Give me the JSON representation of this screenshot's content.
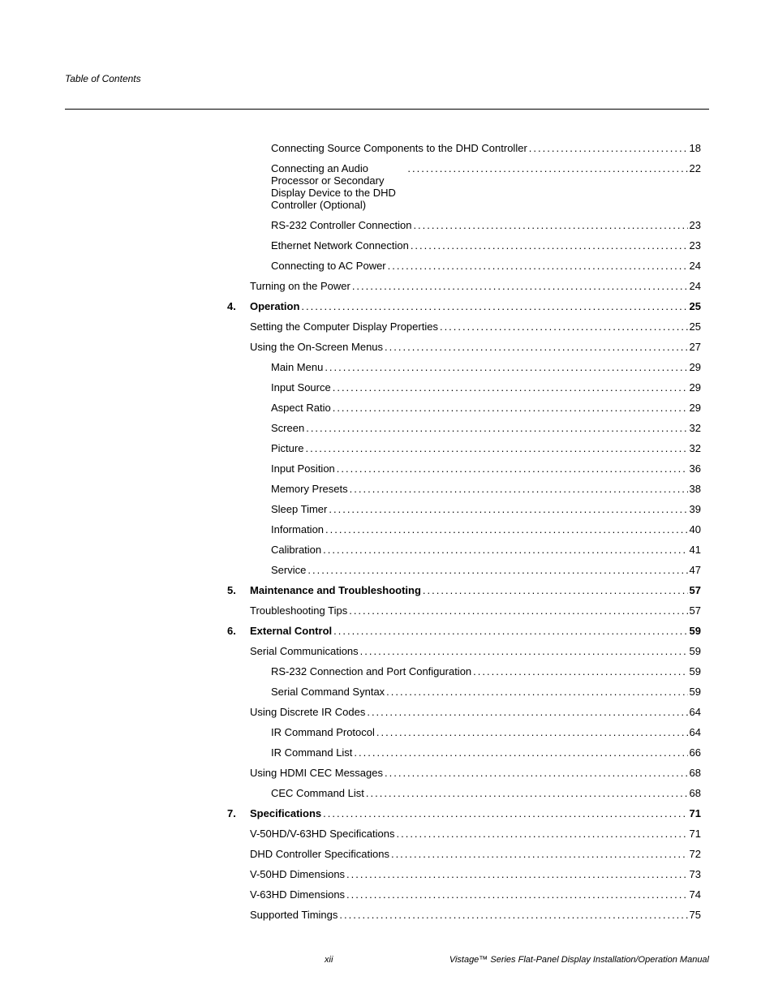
{
  "running_head": "Table of Contents",
  "footer": {
    "page": "xii",
    "manual": "Vistage™ Series Flat-Panel Display Installation/Operation Manual"
  },
  "entries": [
    {
      "num": "",
      "indent": 2,
      "bold": false,
      "label": "Connecting Source Components to the DHD Controller",
      "page": "18"
    },
    {
      "num": "",
      "indent": 2,
      "bold": false,
      "label": "Connecting an Audio Processor or Secondary Display Device to the DHD Controller (Optional)",
      "page": "22",
      "multiline": true
    },
    {
      "num": "",
      "indent": 2,
      "bold": false,
      "label": "RS-232 Controller Connection",
      "page": "23"
    },
    {
      "num": "",
      "indent": 2,
      "bold": false,
      "label": "Ethernet Network Connection",
      "page": "23"
    },
    {
      "num": "",
      "indent": 2,
      "bold": false,
      "label": "Connecting to AC Power",
      "page": "24"
    },
    {
      "num": "",
      "indent": 1,
      "bold": false,
      "label": "Turning on the Power",
      "page": "24"
    },
    {
      "num": "4.",
      "indent": 0,
      "bold": true,
      "label": "Operation",
      "page": "25"
    },
    {
      "num": "",
      "indent": 1,
      "bold": false,
      "label": "Setting the Computer Display Properties",
      "page": "25"
    },
    {
      "num": "",
      "indent": 1,
      "bold": false,
      "label": "Using the On-Screen Menus",
      "page": "27"
    },
    {
      "num": "",
      "indent": 2,
      "bold": false,
      "label": "Main Menu",
      "page": "29"
    },
    {
      "num": "",
      "indent": 2,
      "bold": false,
      "label": "Input Source",
      "page": "29"
    },
    {
      "num": "",
      "indent": 2,
      "bold": false,
      "label": "Aspect Ratio",
      "page": "29"
    },
    {
      "num": "",
      "indent": 2,
      "bold": false,
      "label": "Screen",
      "page": "32"
    },
    {
      "num": "",
      "indent": 2,
      "bold": false,
      "label": "Picture",
      "page": "32"
    },
    {
      "num": "",
      "indent": 2,
      "bold": false,
      "label": "Input Position",
      "page": "36"
    },
    {
      "num": "",
      "indent": 2,
      "bold": false,
      "label": "Memory Presets",
      "page": "38"
    },
    {
      "num": "",
      "indent": 2,
      "bold": false,
      "label": "Sleep Timer",
      "page": "39"
    },
    {
      "num": "",
      "indent": 2,
      "bold": false,
      "label": "Information",
      "page": "40"
    },
    {
      "num": "",
      "indent": 2,
      "bold": false,
      "label": "Calibration",
      "page": "41"
    },
    {
      "num": "",
      "indent": 2,
      "bold": false,
      "label": "Service",
      "page": "47"
    },
    {
      "num": "5.",
      "indent": 0,
      "bold": true,
      "label": "Maintenance and Troubleshooting",
      "page": "57"
    },
    {
      "num": "",
      "indent": 1,
      "bold": false,
      "label": "Troubleshooting Tips",
      "page": "57"
    },
    {
      "num": "6.",
      "indent": 0,
      "bold": true,
      "label": "External Control",
      "page": "59"
    },
    {
      "num": "",
      "indent": 1,
      "bold": false,
      "label": "Serial Communications",
      "page": "59"
    },
    {
      "num": "",
      "indent": 2,
      "bold": false,
      "label": "RS-232 Connection and Port Configuration",
      "page": "59"
    },
    {
      "num": "",
      "indent": 2,
      "bold": false,
      "label": "Serial Command Syntax",
      "page": "59"
    },
    {
      "num": "",
      "indent": 1,
      "bold": false,
      "label": "Using Discrete IR Codes",
      "page": "64"
    },
    {
      "num": "",
      "indent": 2,
      "bold": false,
      "label": "IR Command Protocol",
      "page": "64"
    },
    {
      "num": "",
      "indent": 2,
      "bold": false,
      "label": "IR Command List",
      "page": "66"
    },
    {
      "num": "",
      "indent": 1,
      "bold": false,
      "label": "Using HDMI CEC Messages",
      "page": "68"
    },
    {
      "num": "",
      "indent": 2,
      "bold": false,
      "label": "CEC Command List",
      "page": "68"
    },
    {
      "num": "7.",
      "indent": 0,
      "bold": true,
      "label": "Specifications",
      "page": "71"
    },
    {
      "num": "",
      "indent": 1,
      "bold": false,
      "label": "V-50HD/V-63HD Specifications",
      "page": "71"
    },
    {
      "num": "",
      "indent": 1,
      "bold": false,
      "label": "DHD Controller Specifications",
      "page": "72"
    },
    {
      "num": "",
      "indent": 1,
      "bold": false,
      "label": "V-50HD Dimensions",
      "page": "73"
    },
    {
      "num": "",
      "indent": 1,
      "bold": false,
      "label": "V-63HD Dimensions",
      "page": "74"
    },
    {
      "num": "",
      "indent": 1,
      "bold": false,
      "label": "Supported Timings",
      "page": "75"
    }
  ]
}
